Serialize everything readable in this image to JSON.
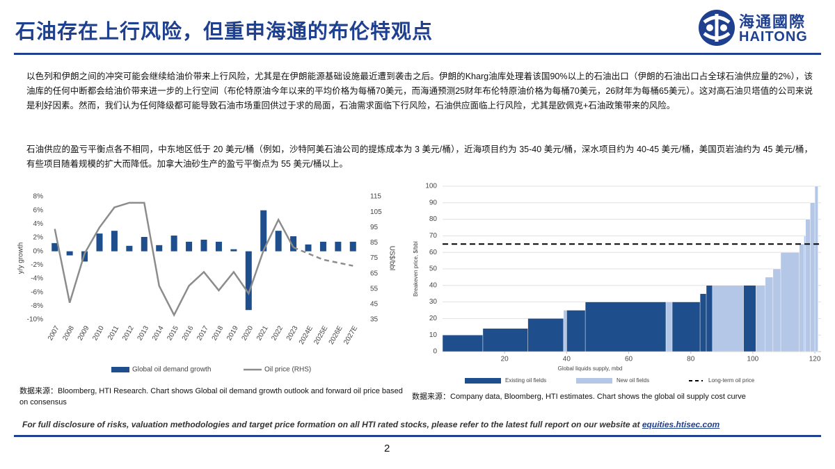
{
  "header": {
    "title": "石油存在上行风险，但重申海通的布伦特观点",
    "logo_cn": "海通國際",
    "logo_en": "HAITONG"
  },
  "paragraphs": [
    "以色列和伊朗之间的冲突可能会继续给油价带来上行风险，尤其是在伊朗能源基础设施最近遭到袭击之后。伊朗的Kharg油库处理着该国90%以上的石油出口（伊朗的石油出口占全球石油供应量的2%），该油库的任何中断都会给油价带来进一步的上行空间（布伦特原油今年以来的平均价格为每桶70美元，而海通预测25财年布伦特原油价格为每桶70美元，26财年为每桶65美元）。这对高石油贝塔值的公司来说是利好因素。然而，我们认为任何降级都可能导致石油市场重回供过于求的局面，石油需求面临下行风险，石油供应面临上行风险，尤其是欧佩克+石油政策带来的风险。",
    "石油供应的盈亏平衡点各不相同，中东地区低于 20 美元/桶（例如，沙特阿美石油公司的提炼成本为 3 美元/桶），近海项目约为 35-40 美元/桶，深水项目约为 40-45 美元/桶，美国页岩油约为 45 美元/桶，有些项目随着规模的扩大而降低。加拿大油砂生产的盈亏平衡点为 55 美元/桶以上。"
  ],
  "chart_data": [
    {
      "type": "combo",
      "categories": [
        "2007",
        "2008",
        "2009",
        "2010",
        "2011",
        "2012",
        "2013",
        "2014",
        "2015",
        "2016",
        "2017",
        "2018",
        "2019",
        "2020",
        "2021",
        "2022",
        "2023",
        "2024E",
        "2025E",
        "2026E",
        "2027E"
      ],
      "series": [
        {
          "name": "Global oil demand growth",
          "type": "bar",
          "color": "#1f4e8c",
          "values": [
            1.2,
            -0.6,
            -1.5,
            2.6,
            3.0,
            0.8,
            2.1,
            0.9,
            2.3,
            1.4,
            1.7,
            1.4,
            0.3,
            -8.6,
            6.0,
            3.0,
            2.2,
            1.0,
            1.4,
            1.4,
            1.4
          ]
        },
        {
          "name": "Oil price (RHS)",
          "type": "line",
          "axis": "y2",
          "color": "#8c8c8c",
          "dashed_from": "2023",
          "values": [
            94,
            46,
            78,
            95,
            108,
            111,
            111,
            57,
            38,
            57,
            66,
            54,
            66,
            52,
            80,
            100,
            82,
            78,
            74,
            72,
            70
          ]
        }
      ],
      "ylabel": "y/y growth",
      "y2label": "US$/bbl",
      "ylim": [
        -10,
        8
      ],
      "yticks": [
        {
          "value": -10,
          "label": "-10%"
        },
        {
          "value": -8,
          "label": "-8%"
        },
        {
          "value": -6,
          "label": "-6%"
        },
        {
          "value": -4,
          "label": "-4%"
        },
        {
          "value": -2,
          "label": "-2%"
        },
        {
          "value": 0,
          "label": "0%"
        },
        {
          "value": 2,
          "label": "2%"
        },
        {
          "value": 4,
          "label": "4%"
        },
        {
          "value": 6,
          "label": "6%"
        },
        {
          "value": 8,
          "label": "8%"
        }
      ],
      "y2lim": [
        35,
        115
      ],
      "y2ticks": [
        35,
        45,
        55,
        65,
        75,
        85,
        95,
        105,
        115
      ]
    },
    {
      "type": "bar",
      "series": [
        {
          "name": "Existing oil fields",
          "color": "#1f4e8c",
          "x_start": [
            0,
            13,
            27.5,
            40,
            46,
            74,
            83,
            85,
            97
          ],
          "x_end": [
            13,
            27.5,
            39,
            46,
            72,
            83,
            85,
            87,
            101
          ],
          "values": [
            10,
            14,
            20,
            25,
            30,
            30,
            35,
            40,
            40
          ]
        },
        {
          "name": "New oil fields",
          "color": "#b4c7e7",
          "x_start": [
            39,
            72,
            87,
            101,
            104,
            106.5,
            109,
            115,
            116.5,
            117,
            118.5,
            120
          ],
          "x_end": [
            40,
            74,
            97,
            104,
            106.5,
            109,
            115,
            116.5,
            117,
            118.5,
            120,
            121
          ],
          "values": [
            25,
            30,
            40,
            40,
            45,
            50,
            60,
            65,
            70,
            80,
            90,
            100
          ]
        }
      ],
      "reference_line": {
        "name": "Long-term oil price",
        "value": 65,
        "color": "#000000",
        "dashed": true
      },
      "xlabel": "Global liquids supply, mbd",
      "ylabel": "Breakeven price, $/bbl",
      "xlim": [
        0,
        122
      ],
      "xticks": [
        20,
        40,
        60,
        80,
        100,
        120
      ],
      "ylim": [
        0,
        100
      ],
      "yticks": [
        0,
        10,
        20,
        30,
        40,
        50,
        60,
        70,
        80,
        90,
        100
      ],
      "grid": true
    }
  ],
  "sources": [
    "数据来源：Bloomberg, HTI Research. Chart shows Global oil demand growth outlook and forward oil price based on consensus",
    "数据来源：Company data, Bloomberg, HTI estimates. Chart shows the global oil supply cost curve"
  ],
  "footer": {
    "disclaimer": "For full disclosure of risks, valuation methodologies and target price formation on all HTI rated stocks, please refer to the latest full report on our website at",
    "link": "equities.htisec.com",
    "page": "2"
  }
}
